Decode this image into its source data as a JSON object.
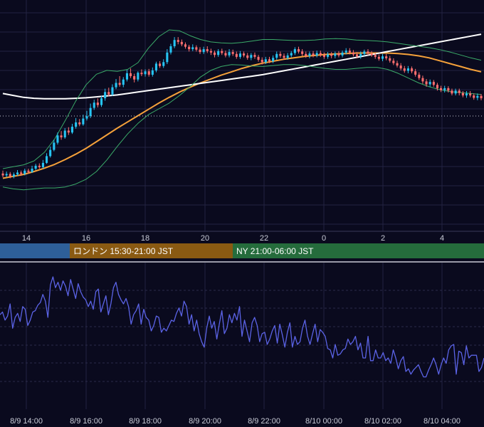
{
  "chart_data": [
    {
      "type": "candlestick",
      "panel": "price",
      "x_ticks": [
        "14",
        "16",
        "18",
        "20",
        "22",
        "0",
        "2",
        "4"
      ],
      "candles": [
        [
          72.0,
          71.6,
          72.6,
          71.2
        ],
        [
          71.6,
          71.9,
          72.4,
          71.2
        ],
        [
          71.9,
          71.4,
          72.3,
          71.0
        ],
        [
          71.4,
          71.8,
          72.2,
          71.0
        ],
        [
          71.8,
          72.2,
          72.7,
          71.5
        ],
        [
          72.2,
          71.9,
          72.6,
          71.5
        ],
        [
          71.9,
          72.6,
          73.0,
          71.6
        ],
        [
          72.6,
          72.3,
          73.0,
          72.0
        ],
        [
          72.3,
          73.0,
          73.6,
          72.1
        ],
        [
          73.0,
          73.6,
          74.0,
          72.7
        ],
        [
          73.6,
          73.3,
          74.1,
          73.0
        ],
        [
          73.3,
          74.2,
          74.8,
          73.0
        ],
        [
          74.2,
          75.6,
          76.2,
          74.0
        ],
        [
          75.6,
          76.9,
          77.6,
          75.3
        ],
        [
          76.9,
          78.4,
          79.0,
          76.6
        ],
        [
          78.4,
          79.9,
          80.5,
          78.0
        ],
        [
          79.9,
          79.5,
          80.8,
          79.0
        ],
        [
          79.5,
          80.9,
          81.4,
          79.2
        ],
        [
          80.9,
          80.5,
          81.6,
          80.0
        ],
        [
          80.5,
          81.7,
          82.3,
          80.2
        ],
        [
          81.7,
          82.6,
          83.5,
          81.3
        ],
        [
          82.6,
          82.2,
          83.3,
          81.8
        ],
        [
          82.2,
          83.4,
          84.2,
          81.9
        ],
        [
          83.4,
          83.9,
          85.0,
          83.0
        ],
        [
          83.9,
          85.6,
          86.5,
          83.5
        ],
        [
          85.6,
          86.7,
          87.3,
          85.2
        ],
        [
          86.7,
          86.2,
          87.6,
          85.7
        ],
        [
          86.2,
          87.6,
          88.1,
          85.8
        ],
        [
          87.6,
          88.9,
          89.6,
          87.1
        ],
        [
          88.9,
          88.4,
          89.8,
          88.0
        ],
        [
          88.4,
          89.9,
          90.5,
          88.1
        ],
        [
          89.9,
          90.8,
          91.6,
          89.5
        ],
        [
          90.8,
          90.4,
          92.2,
          90.0
        ],
        [
          90.4,
          91.5,
          92.0,
          89.9
        ],
        [
          91.5,
          92.8,
          93.5,
          91.1
        ],
        [
          92.8,
          92.2,
          93.8,
          91.8
        ],
        [
          92.2,
          91.5,
          92.7,
          90.9
        ],
        [
          91.5,
          92.9,
          93.2,
          91.1
        ],
        [
          92.9,
          92.6,
          93.6,
          92.2
        ],
        [
          92.6,
          93.2,
          93.6,
          92.1
        ],
        [
          93.2,
          92.5,
          93.7,
          92.1
        ],
        [
          92.5,
          93.4,
          94.0,
          92.1
        ],
        [
          93.4,
          94.8,
          95.2,
          93.0
        ],
        [
          94.8,
          94.3,
          95.3,
          93.9
        ],
        [
          94.3,
          95.1,
          95.7,
          93.9
        ],
        [
          95.1,
          97.1,
          97.8,
          94.7
        ],
        [
          97.1,
          98.4,
          98.9,
          96.7
        ],
        [
          98.4,
          99.7,
          100.3,
          98.0
        ],
        [
          99.7,
          99.3,
          100.3,
          98.8
        ],
        [
          99.3,
          98.8,
          99.8,
          98.4
        ],
        [
          98.8,
          98.3,
          99.2,
          97.9
        ],
        [
          98.3,
          97.8,
          98.7,
          97.3
        ],
        [
          97.8,
          98.2,
          98.8,
          97.4
        ],
        [
          98.2,
          97.7,
          98.6,
          97.3
        ],
        [
          97.7,
          97.2,
          98.2,
          96.8
        ],
        [
          97.2,
          97.8,
          98.3,
          96.8
        ],
        [
          97.8,
          97.4,
          98.4,
          97.0
        ],
        [
          97.4,
          97.1,
          97.9,
          96.6
        ],
        [
          97.1,
          96.6,
          97.5,
          96.1
        ],
        [
          96.6,
          97.4,
          97.8,
          96.2
        ],
        [
          97.4,
          97.0,
          97.9,
          96.6
        ],
        [
          97.0,
          96.5,
          97.5,
          96.1
        ],
        [
          96.5,
          97.2,
          97.8,
          96.1
        ],
        [
          97.2,
          96.8,
          97.7,
          96.4
        ],
        [
          96.8,
          96.2,
          97.3,
          95.8
        ],
        [
          96.2,
          96.9,
          97.4,
          95.8
        ],
        [
          96.9,
          96.5,
          97.3,
          96.1
        ],
        [
          96.5,
          96.0,
          97.0,
          95.6
        ],
        [
          96.0,
          96.6,
          97.0,
          95.5
        ],
        [
          96.6,
          96.2,
          97.1,
          95.8
        ],
        [
          96.2,
          95.6,
          96.6,
          95.2
        ],
        [
          95.6,
          95.1,
          96.1,
          94.6
        ],
        [
          95.1,
          95.7,
          96.2,
          94.7
        ],
        [
          95.7,
          95.3,
          96.2,
          94.9
        ],
        [
          95.3,
          96.0,
          96.5,
          94.9
        ],
        [
          96.0,
          96.8,
          97.3,
          95.6
        ],
        [
          96.8,
          96.4,
          97.3,
          96.0
        ],
        [
          96.4,
          96.0,
          96.9,
          95.6
        ],
        [
          96.0,
          96.5,
          97.0,
          95.6
        ],
        [
          96.5,
          97.0,
          97.4,
          96.1
        ],
        [
          97.0,
          97.8,
          98.2,
          96.6
        ],
        [
          97.8,
          97.3,
          98.3,
          96.9
        ],
        [
          97.3,
          96.8,
          97.8,
          96.4
        ],
        [
          96.8,
          96.4,
          97.3,
          96.0
        ],
        [
          96.4,
          96.9,
          97.3,
          95.9
        ],
        [
          96.9,
          96.5,
          97.4,
          96.1
        ],
        [
          96.5,
          97.0,
          97.5,
          96.1
        ],
        [
          97.0,
          96.6,
          97.5,
          96.2
        ],
        [
          96.6,
          96.2,
          97.1,
          95.8
        ],
        [
          96.2,
          96.7,
          97.2,
          95.8
        ],
        [
          96.7,
          96.4,
          97.2,
          95.9
        ],
        [
          96.4,
          96.9,
          97.3,
          95.9
        ],
        [
          96.9,
          96.5,
          97.4,
          96.1
        ],
        [
          96.5,
          97.1,
          97.5,
          96.1
        ],
        [
          97.1,
          97.5,
          98.0,
          96.7
        ],
        [
          97.5,
          97.1,
          98.0,
          96.7
        ],
        [
          97.1,
          96.7,
          97.6,
          96.3
        ],
        [
          96.7,
          96.3,
          97.2,
          95.9
        ],
        [
          96.3,
          96.8,
          97.3,
          95.8
        ],
        [
          96.8,
          97.3,
          97.7,
          96.4
        ],
        [
          97.3,
          96.9,
          97.8,
          96.5
        ],
        [
          96.9,
          96.6,
          97.4,
          96.2
        ],
        [
          96.6,
          96.2,
          97.0,
          95.8
        ],
        [
          96.2,
          95.8,
          96.7,
          95.4
        ],
        [
          95.8,
          96.3,
          96.8,
          95.3
        ],
        [
          96.3,
          95.9,
          96.8,
          95.5
        ],
        [
          95.9,
          95.4,
          96.4,
          95.0
        ],
        [
          95.4,
          94.9,
          95.9,
          94.5
        ],
        [
          94.9,
          94.4,
          95.4,
          94.0
        ],
        [
          94.4,
          93.8,
          94.9,
          93.4
        ],
        [
          93.8,
          93.3,
          94.3,
          92.9
        ],
        [
          93.3,
          93.8,
          94.3,
          92.8
        ],
        [
          93.8,
          93.2,
          94.2,
          92.8
        ],
        [
          93.2,
          92.5,
          93.7,
          92.1
        ],
        [
          92.5,
          91.8,
          93.0,
          91.4
        ],
        [
          91.8,
          91.1,
          92.3,
          90.6
        ],
        [
          91.1,
          90.5,
          91.6,
          90.0
        ],
        [
          90.5,
          91.0,
          91.5,
          90.0
        ],
        [
          91.0,
          90.4,
          91.4,
          90.0
        ],
        [
          90.4,
          89.7,
          90.8,
          89.2
        ],
        [
          89.7,
          89.3,
          90.2,
          88.9
        ],
        [
          89.3,
          89.7,
          90.2,
          88.8
        ],
        [
          89.7,
          89.2,
          90.1,
          88.8
        ],
        [
          89.2,
          88.6,
          89.6,
          88.2
        ],
        [
          88.6,
          89.2,
          89.6,
          88.2
        ],
        [
          89.2,
          88.7,
          89.6,
          88.2
        ],
        [
          88.7,
          88.2,
          89.1,
          87.8
        ],
        [
          88.2,
          88.6,
          89.1,
          87.7
        ],
        [
          88.6,
          88.2,
          89.1,
          87.8
        ],
        [
          88.2,
          87.7,
          88.6,
          87.3
        ],
        [
          87.7,
          88.1,
          88.6,
          87.2
        ],
        [
          88.1,
          87.6,
          88.5,
          87.2
        ]
      ],
      "overlays": [
        {
          "name": "EMA",
          "color": "#f5a13a",
          "values": [
            71.0,
            71.4,
            71.8,
            72.4,
            73.1,
            73.9,
            74.9,
            76.0,
            77.2,
            78.6,
            80.0,
            81.4,
            82.7,
            84.0,
            85.3,
            86.6,
            87.8,
            88.9,
            89.9,
            90.8,
            91.6,
            92.4,
            93.1,
            93.8,
            94.4,
            94.9,
            95.3,
            95.7,
            96.0,
            96.3,
            96.5,
            96.7,
            96.8,
            96.9,
            97.0,
            97.0,
            97.0,
            97.0,
            96.9,
            96.7,
            96.4,
            96.0,
            95.4,
            94.8,
            94.2,
            93.6,
            93.1
          ]
        },
        {
          "name": "SMA",
          "color": "#ffffff",
          "values": [
            88.6,
            88.2,
            87.8,
            87.6,
            87.5,
            87.5,
            87.5,
            87.6,
            87.7,
            87.9,
            88.1,
            88.3,
            88.6,
            88.9,
            89.2,
            89.5,
            89.8,
            90.1,
            90.4,
            90.7,
            91.0,
            91.3,
            91.6,
            91.9,
            92.2,
            92.5,
            92.9,
            93.3,
            93.7,
            94.1,
            94.5,
            94.9,
            95.3,
            95.7,
            96.1,
            96.5,
            96.9,
            97.3,
            97.7,
            98.1,
            98.5,
            98.9,
            99.3,
            99.7,
            100.1,
            100.5,
            100.9
          ]
        },
        {
          "name": "BB upper",
          "color": "#3bab69",
          "values": [
            73.0,
            73.4,
            73.8,
            74.6,
            76.4,
            79.2,
            83.0,
            87.0,
            90.4,
            92.6,
            93.4,
            93.2,
            93.6,
            95.0,
            98.0,
            100.4,
            101.8,
            101.6,
            100.6,
            99.8,
            99.3,
            99.1,
            99.0,
            99.2,
            99.5,
            99.8,
            99.8,
            99.7,
            99.6,
            99.6,
            99.7,
            99.9,
            100.0,
            99.9,
            99.7,
            99.6,
            99.5,
            99.3,
            99.0,
            98.7,
            98.4,
            98.1,
            97.7,
            97.2,
            96.6,
            96.0,
            95.5
          ]
        },
        {
          "name": "BB lower",
          "color": "#3bab69",
          "values": [
            69.2,
            68.8,
            68.6,
            68.8,
            69.0,
            69.0,
            69.2,
            69.8,
            70.8,
            72.4,
            74.8,
            77.6,
            80.2,
            82.4,
            84.2,
            85.4,
            86.6,
            88.2,
            90.0,
            92.0,
            93.4,
            94.2,
            94.6,
            94.5,
            94.3,
            94.2,
            94.4,
            94.6,
            94.6,
            94.4,
            94.1,
            93.8,
            93.6,
            93.6,
            93.8,
            94.0,
            94.0,
            93.6,
            92.8,
            91.8,
            90.8,
            90.0,
            89.4,
            89.0,
            88.8,
            88.6,
            88.4
          ]
        }
      ]
    },
    {
      "type": "line",
      "panel": "oscillator",
      "x_ticks": [
        "8/9 14:00",
        "8/9 16:00",
        "8/9 18:00",
        "8/9 20:00",
        "8/9 22:00",
        "8/10 00:00",
        "8/10 02:00",
        "8/10 04:00"
      ],
      "series": [
        {
          "color": "#5b63e6",
          "values": [
            62,
            64,
            58,
            61,
            70,
            52,
            60,
            63,
            57,
            68,
            66,
            54,
            58,
            64,
            65,
            69,
            71,
            77,
            72,
            60,
            84,
            90,
            82,
            86,
            80,
            87,
            83,
            76,
            88,
            81,
            74,
            85,
            79,
            75,
            73,
            68,
            72,
            66,
            79,
            81,
            64,
            70,
            76,
            62,
            70,
            82,
            86,
            77,
            73,
            70,
            74,
            68,
            55,
            62,
            65,
            70,
            55,
            66,
            60,
            58,
            50,
            54,
            61,
            60,
            49,
            52,
            50,
            54,
            58,
            57,
            63,
            67,
            61,
            72,
            68,
            55,
            62,
            50,
            58,
            48,
            42,
            38,
            52,
            61,
            52,
            57,
            44,
            55,
            65,
            48,
            52,
            62,
            56,
            63,
            58,
            68,
            46,
            58,
            50,
            42,
            56,
            60,
            54,
            42,
            48,
            49,
            40,
            44,
            50,
            54,
            41,
            55,
            47,
            38,
            49,
            56,
            38,
            46,
            40,
            42,
            52,
            58,
            46,
            40,
            48,
            55,
            42,
            51,
            49,
            46,
            37,
            36,
            30,
            40,
            32,
            33,
            36,
            37,
            44,
            40,
            42,
            46,
            36,
            41,
            30,
            30,
            46,
            28,
            28,
            36,
            30,
            30,
            34,
            28,
            30,
            26,
            36,
            30,
            22,
            28,
            31,
            20,
            22,
            18,
            21,
            23,
            25,
            20,
            16,
            16,
            21,
            25,
            30,
            25,
            18,
            25,
            30,
            26,
            36,
            39,
            40,
            18,
            35,
            34,
            25,
            39,
            30,
            32,
            32,
            32,
            20,
            23,
            30
          ]
        }
      ]
    }
  ],
  "sessions": [
    {
      "label": "",
      "color": "#2e5f99"
    },
    {
      "label": "ロンドン 15:30-21:00 JST",
      "color": "#8a5a12"
    },
    {
      "label": "NY 21:00-06:00 JST",
      "color": "#256c3c"
    }
  ]
}
